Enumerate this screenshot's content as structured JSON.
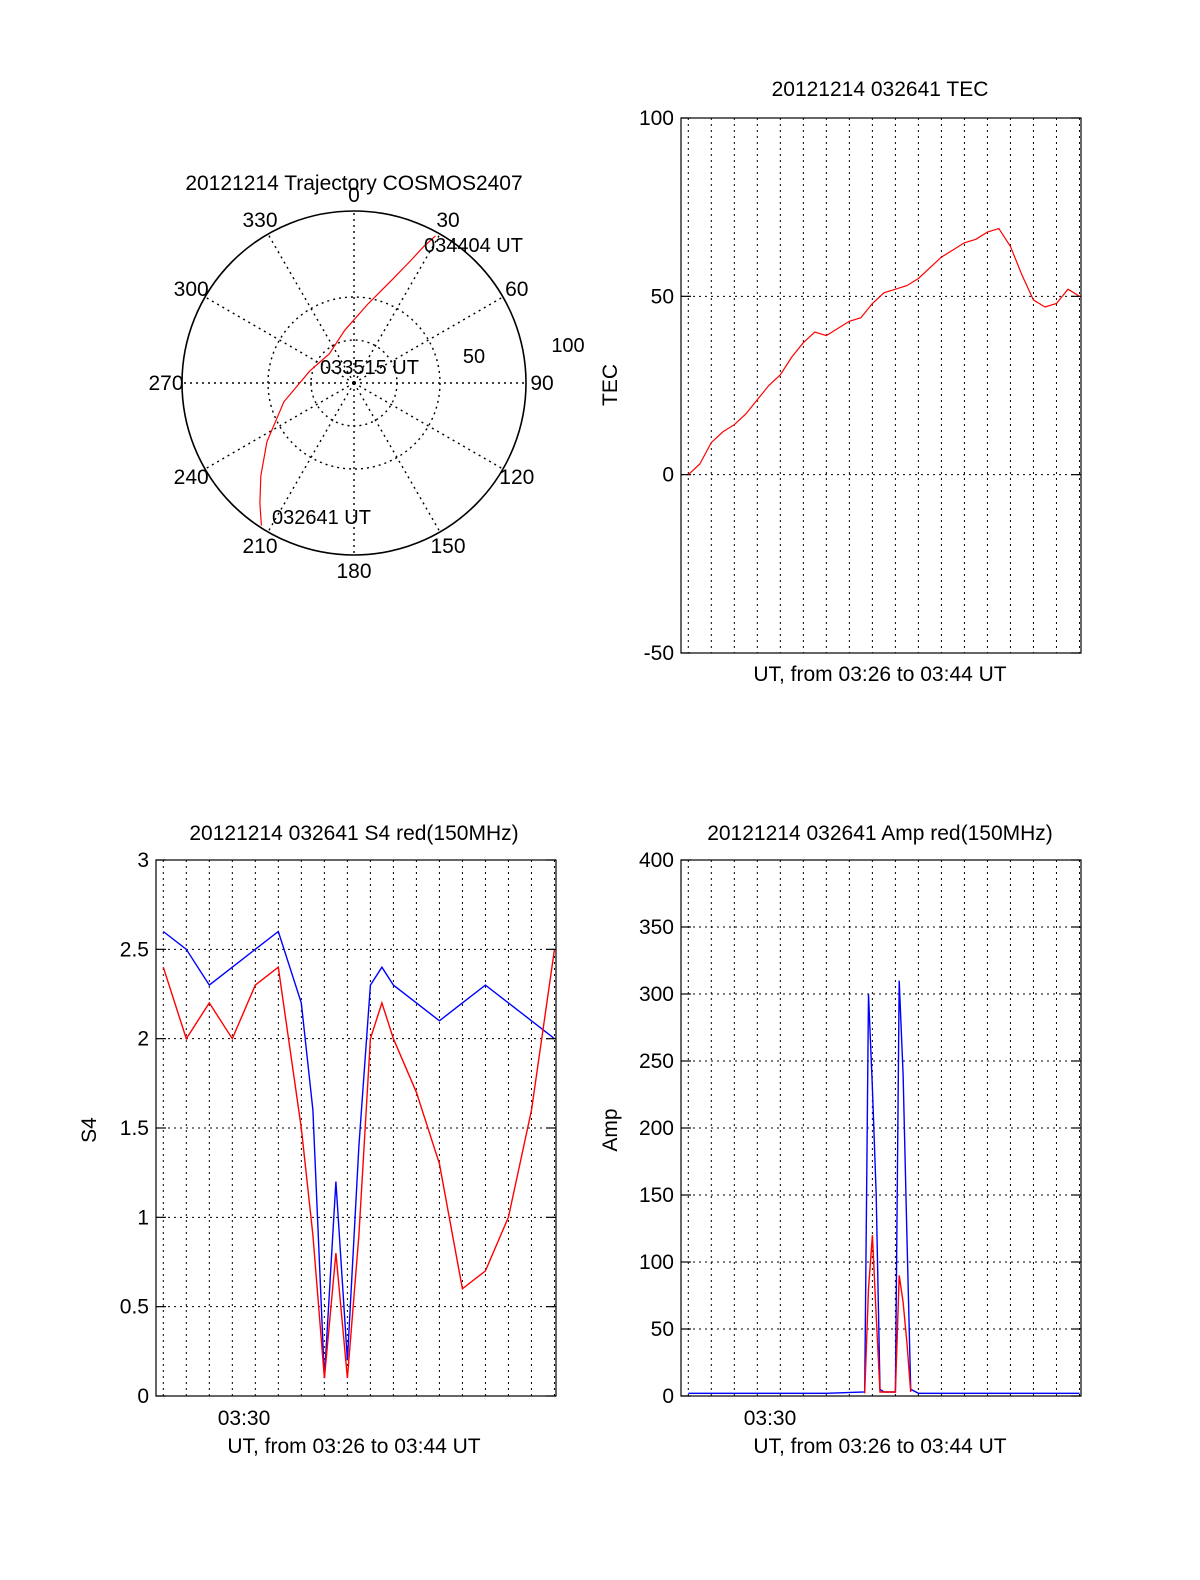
{
  "colors": {
    "red": "#ff0000",
    "blue": "#0000ff",
    "axis": "#000000",
    "grid": "#000000"
  },
  "chart_data": [
    {
      "id": "trajectory",
      "type": "polar",
      "title": "20121214 Trajectory COSMOS2407",
      "angle_labels": [
        "0",
        "30",
        "60",
        "90",
        "120",
        "150",
        "180",
        "210",
        "240",
        "270",
        "300",
        "330"
      ],
      "radius_labels": [
        "50",
        "100"
      ],
      "rlim": [
        0,
        100
      ],
      "grid": true,
      "track": {
        "color": "#ff0000",
        "points": [
          {
            "az": 213,
            "el": 1
          },
          {
            "az": 218,
            "el": 10
          },
          {
            "az": 225,
            "el": 21
          },
          {
            "az": 236,
            "el": 35
          },
          {
            "az": 255,
            "el": 52
          },
          {
            "az": 285,
            "el": 66
          },
          {
            "az": 320,
            "el": 70
          },
          {
            "az": 350,
            "el": 62
          },
          {
            "az": 10,
            "el": 48
          },
          {
            "az": 20,
            "el": 33
          },
          {
            "az": 25,
            "el": 19
          },
          {
            "az": 27,
            "el": 10
          },
          {
            "az": 29,
            "el": 2
          }
        ]
      },
      "annotations": [
        {
          "text": "034404 UT",
          "az": 33,
          "el": 5
        },
        {
          "text": "033515 UT",
          "az": 205,
          "el": 3
        },
        {
          "text": "032641 UT",
          "az": 208,
          "el": 8
        }
      ]
    },
    {
      "id": "tec",
      "type": "line",
      "title": "20121214 032641 TEC",
      "xlabel": "UT, from 03:26 to 03:44 UT",
      "ylabel": "TEC",
      "xlim": [
        "03:26:41",
        "03:44:04"
      ],
      "ylim": [
        -50,
        100
      ],
      "yticks": [
        "-50",
        "0",
        "50",
        "100"
      ],
      "grid": true,
      "series": [
        {
          "color": "#ff0000",
          "x": [
            "03:27:00",
            "03:27:30",
            "03:28:00",
            "03:28:30",
            "03:29:00",
            "03:29:30",
            "03:30:00",
            "03:30:30",
            "03:31:00",
            "03:31:30",
            "03:32:00",
            "03:32:30",
            "03:33:00",
            "03:33:30",
            "03:34:00",
            "03:34:30",
            "03:35:00",
            "03:35:30",
            "03:36:00",
            "03:36:30",
            "03:37:00",
            "03:37:30",
            "03:38:00",
            "03:38:30",
            "03:39:00",
            "03:39:30",
            "03:40:00",
            "03:40:30",
            "03:41:00",
            "03:41:30",
            "03:42:00",
            "03:42:30",
            "03:43:00",
            "03:43:30",
            "03:44:00"
          ],
          "y": [
            0,
            3,
            9,
            12,
            14,
            17,
            21,
            25,
            28,
            33,
            37,
            40,
            39,
            41,
            43,
            44,
            48,
            51,
            52,
            53,
            55,
            58,
            61,
            63,
            65,
            66,
            68,
            69,
            64,
            56,
            49,
            47,
            48,
            52,
            50
          ]
        }
      ]
    },
    {
      "id": "s4",
      "type": "line",
      "title": "20121214 032641 S4 red(150MHz)",
      "xlabel": "UT, from 03:26 to 03:44 UT",
      "ylabel": "S4",
      "xlim": [
        "03:26:41",
        "03:44:04"
      ],
      "ylim": [
        0,
        3
      ],
      "yticks": [
        "0",
        "0.5",
        "1",
        "1.5",
        "2",
        "2.5",
        "3"
      ],
      "xticks": [
        "03:30"
      ],
      "grid": true,
      "series": [
        {
          "color": "#0000ff",
          "x": [
            "03:27:00",
            "03:28:00",
            "03:29:00",
            "03:30:00",
            "03:31:00",
            "03:32:00",
            "03:33:00",
            "03:33:30",
            "03:34:00",
            "03:34:30",
            "03:35:00",
            "03:35:30",
            "03:36:00",
            "03:36:30",
            "03:37:00",
            "03:38:00",
            "03:39:00",
            "03:40:00",
            "03:41:00",
            "03:42:00",
            "03:43:00",
            "03:44:00"
          ],
          "y": [
            2.6,
            2.5,
            2.3,
            2.4,
            2.5,
            2.6,
            2.2,
            1.6,
            0.1,
            1.2,
            0.2,
            1.4,
            2.3,
            2.4,
            2.3,
            2.2,
            2.1,
            2.2,
            2.3,
            2.2,
            2.1,
            2.0
          ]
        },
        {
          "color": "#ff0000",
          "x": [
            "03:27:00",
            "03:28:00",
            "03:29:00",
            "03:30:00",
            "03:31:00",
            "03:32:00",
            "03:33:00",
            "03:33:30",
            "03:34:00",
            "03:34:30",
            "03:35:00",
            "03:35:30",
            "03:36:00",
            "03:36:30",
            "03:37:00",
            "03:38:00",
            "03:39:00",
            "03:40:00",
            "03:41:00",
            "03:42:00",
            "03:43:00",
            "03:44:00"
          ],
          "y": [
            2.4,
            2.0,
            2.2,
            2.0,
            2.3,
            2.4,
            1.5,
            0.9,
            0.1,
            0.8,
            0.1,
            0.9,
            2.0,
            2.2,
            2.0,
            1.7,
            1.3,
            0.6,
            0.7,
            1.0,
            1.6,
            2.5
          ]
        }
      ]
    },
    {
      "id": "amp",
      "type": "line",
      "title": "20121214 032641 Amp red(150MHz)",
      "xlabel": "UT, from 03:26 to 03:44 UT",
      "ylabel": "Amp",
      "xlim": [
        "03:26:41",
        "03:44:04"
      ],
      "ylim": [
        0,
        400
      ],
      "yticks": [
        "0",
        "50",
        "100",
        "150",
        "200",
        "250",
        "300",
        "350",
        "400"
      ],
      "xticks": [
        "03:30"
      ],
      "grid": true,
      "series": [
        {
          "color": "#0000ff",
          "x": [
            "03:27:00",
            "03:30:00",
            "03:33:00",
            "03:34:40",
            "03:34:50",
            "03:35:00",
            "03:35:10",
            "03:35:20",
            "03:35:30",
            "03:36:00",
            "03:36:10",
            "03:36:20",
            "03:36:30",
            "03:36:40",
            "03:37:00",
            "03:40:00",
            "03:44:00"
          ],
          "y": [
            2,
            2,
            2,
            3,
            300,
            230,
            150,
            5,
            3,
            3,
            310,
            240,
            120,
            5,
            2,
            2,
            2
          ]
        },
        {
          "color": "#ff0000",
          "x": [
            "03:34:40",
            "03:34:50",
            "03:35:00",
            "03:35:10",
            "03:35:20",
            "03:36:00",
            "03:36:10",
            "03:36:20",
            "03:36:30",
            "03:36:40"
          ],
          "y": [
            2,
            80,
            120,
            60,
            3,
            3,
            90,
            70,
            40,
            3
          ]
        }
      ]
    }
  ]
}
